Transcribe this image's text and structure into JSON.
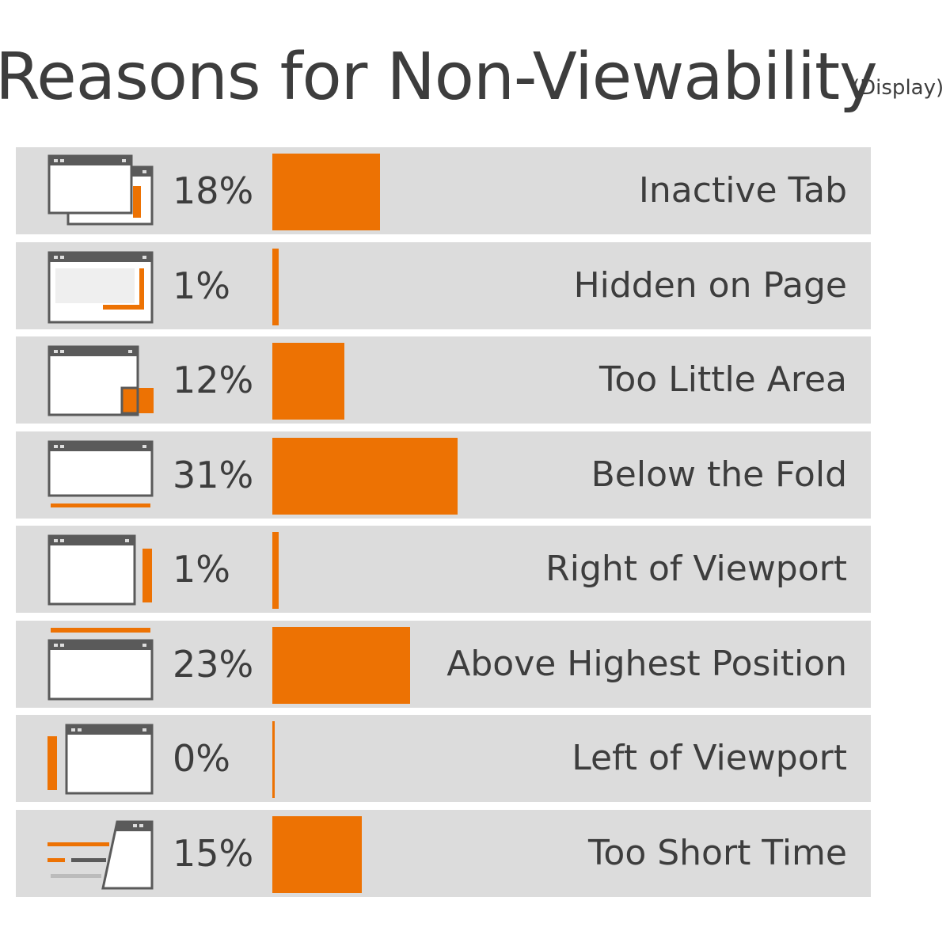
{
  "header": {
    "title": "Reasons for Non-Viewability",
    "subtitle": "(Display)"
  },
  "colors": {
    "accent": "#ed7203",
    "row_bg": "#dcdcdc",
    "icon_gray": "#5a5a5a",
    "text": "#3d3d3d"
  },
  "chart_data": {
    "type": "bar",
    "title": "Reasons for Non-Viewability",
    "subtitle": "(Display)",
    "orientation": "horizontal",
    "categories": [
      "Inactive Tab",
      "Hidden on Page",
      "Too Little Area",
      "Below the Fold",
      "Right of Viewport",
      "Above Highest Position",
      "Left of Viewport",
      "Too Short Time"
    ],
    "values": [
      18,
      1,
      12,
      31,
      1,
      23,
      0,
      15
    ],
    "value_labels": [
      "18%",
      "1%",
      "12%",
      "31%",
      "1%",
      "23%",
      "0%",
      "15%"
    ],
    "icons": [
      "inactive-tab-icon",
      "hidden-on-page-icon",
      "too-little-area-icon",
      "below-the-fold-icon",
      "right-of-viewport-icon",
      "above-highest-position-icon",
      "left-of-viewport-icon",
      "too-short-time-icon"
    ],
    "unit": "%",
    "xlim": [
      0,
      100
    ],
    "grid": false,
    "legend": "none"
  }
}
